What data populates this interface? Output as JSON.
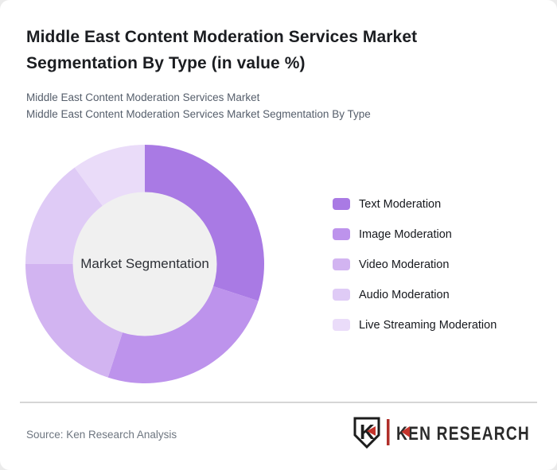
{
  "page": {
    "background_color": "#ebebeb",
    "card_background_color": "#ffffff"
  },
  "header": {
    "title": "Middle East Content Moderation Services Market Segmentation By Type (in value %)",
    "subtitle_line1": "Middle East Content Moderation Services Market",
    "subtitle_line2": "Middle East Content Moderation Services Market Segmentation By Type"
  },
  "chart_data": {
    "type": "pie",
    "variant": "donut",
    "title": "Middle East Content Moderation Services Market Segmentation By Type (in value %)",
    "center_label": "Market Segmentation",
    "categories": [
      "Text Moderation",
      "Image Moderation",
      "Video Moderation",
      "Audio Moderation",
      "Live Streaming Moderation"
    ],
    "values": [
      30,
      25,
      20,
      15,
      10
    ],
    "unit": "% of value (estimated from arc angles; no data labels shown)",
    "colors": [
      "#a97ae4",
      "#bd93ec",
      "#d2b4f1",
      "#dfcbf6",
      "#eadcf9"
    ],
    "inner_circle_color": "#f0f0f0",
    "start_angle_deg": 0,
    "direction": "clockwise",
    "legend_position": "right",
    "grid": false
  },
  "footer": {
    "source_text": "Source: Ken Research Analysis",
    "logo": {
      "shield_letter": "K",
      "wordmark": "KEN RESEARCH",
      "accent_color": "#c4342c",
      "text_color": "#2b2b2b"
    }
  }
}
